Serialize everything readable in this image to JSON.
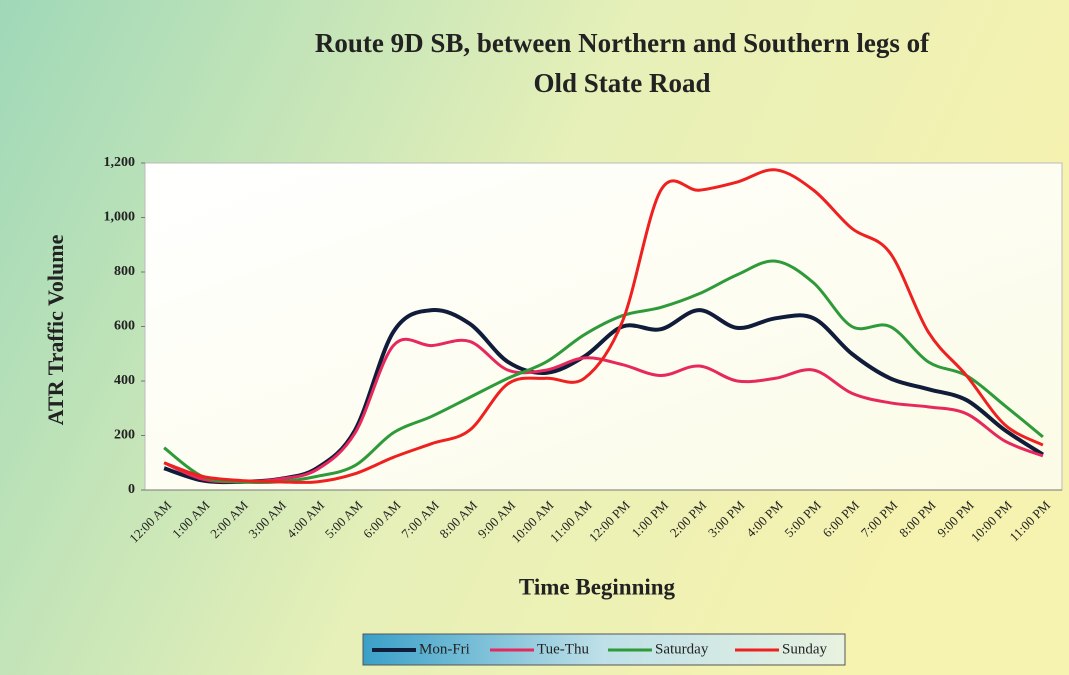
{
  "chart_data": {
    "type": "line",
    "title": "Route 9D SB, between Northern and Southern legs of Old State Road",
    "x_label": "Time Beginning",
    "y_label": "ATR Traffic Volume",
    "categories": [
      "12:00 AM",
      "1:00 AM",
      "2:00 AM",
      "3:00 AM",
      "4:00 AM",
      "5:00 AM",
      "6:00 AM",
      "7:00 AM",
      "8:00 AM",
      "9:00 AM",
      "10:00 AM",
      "11:00 AM",
      "12:00 PM",
      "1:00 PM",
      "2:00 PM",
      "3:00 PM",
      "4:00 PM",
      "5:00 PM",
      "6:00 PM",
      "7:00 PM",
      "8:00 PM",
      "9:00 PM",
      "10:00 PM",
      "11:00 PM"
    ],
    "series": [
      {
        "name": "Mon-Fri",
        "color": "#101c3a",
        "values": [
          80,
          35,
          30,
          40,
          80,
          220,
          580,
          660,
          610,
          470,
          430,
          490,
          600,
          590,
          660,
          595,
          630,
          630,
          500,
          410,
          370,
          330,
          220,
          130
        ]
      },
      {
        "name": "Tue-Thu",
        "color": "#e6285c",
        "values": [
          100,
          40,
          30,
          40,
          75,
          210,
          530,
          530,
          545,
          440,
          440,
          485,
          460,
          420,
          455,
          400,
          410,
          440,
          355,
          320,
          305,
          280,
          180,
          125
        ]
      },
      {
        "name": "Saturday",
        "color": "#2e9a3a",
        "values": [
          155,
          50,
          30,
          30,
          50,
          90,
          210,
          270,
          340,
          410,
          470,
          570,
          640,
          670,
          720,
          790,
          840,
          760,
          600,
          600,
          470,
          420,
          310,
          195
        ]
      },
      {
        "name": "Sunday",
        "color": "#ee2020",
        "values": [
          100,
          50,
          35,
          30,
          30,
          60,
          120,
          170,
          220,
          390,
          410,
          410,
          620,
          1100,
          1100,
          1130,
          1175,
          1100,
          960,
          870,
          580,
          420,
          240,
          165
        ]
      }
    ],
    "ylim": [
      0,
      1200
    ],
    "yticks": [
      0,
      200,
      400,
      600,
      800,
      {
        "value": 1000,
        "label": "1,000"
      },
      {
        "value": 1200,
        "label": "1,200"
      }
    ],
    "grid": false,
    "legend": "bottom"
  }
}
